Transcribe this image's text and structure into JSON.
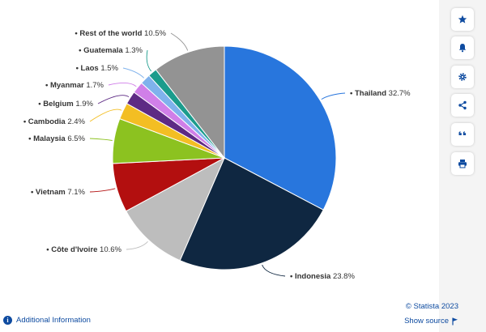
{
  "chart_data": {
    "type": "pie",
    "unit": "%",
    "start_angle_deg": 0,
    "direction": "clockwise",
    "slices": [
      {
        "label": "Thailand",
        "value": 32.7,
        "value_text": "32.7%",
        "color": "#2876dd"
      },
      {
        "label": "Indonesia",
        "value": 23.8,
        "value_text": "23.8%",
        "color": "#0f2741"
      },
      {
        "label": "Côte d'Ivoire",
        "value": 10.6,
        "value_text": "10.6%",
        "color": "#bdbdbd"
      },
      {
        "label": "Vietnam",
        "value": 7.1,
        "value_text": "7.1%",
        "color": "#b30f0f"
      },
      {
        "label": "Malaysia",
        "value": 6.5,
        "value_text": "6.5%",
        "color": "#8cc220"
      },
      {
        "label": "Cambodia",
        "value": 2.4,
        "value_text": "2.4%",
        "color": "#f3be23"
      },
      {
        "label": "Belgium",
        "value": 1.9,
        "value_text": "1.9%",
        "color": "#5d2a84"
      },
      {
        "label": "Myanmar",
        "value": 1.7,
        "value_text": "1.7%",
        "color": "#d07fe8"
      },
      {
        "label": "Laos",
        "value": 1.5,
        "value_text": "1.5%",
        "color": "#7fb2ec"
      },
      {
        "label": "Guatemala",
        "value": 1.3,
        "value_text": "1.3%",
        "color": "#1b9c8c"
      },
      {
        "label": "Rest of the world",
        "value": 10.5,
        "value_text": "10.5%",
        "color": "#939393"
      }
    ]
  },
  "footer": {
    "credit": "© Statista 2023",
    "show_source": "Show source",
    "additional_info": "Additional Information"
  },
  "sidebar": {
    "buttons": [
      {
        "icon": "star-icon"
      },
      {
        "icon": "bell-icon"
      },
      {
        "icon": "gear-icon"
      },
      {
        "icon": "share-icon"
      },
      {
        "icon": "quote-icon"
      },
      {
        "icon": "print-icon"
      }
    ]
  },
  "colors": {
    "accent": "#0e4ba0",
    "sidebar_bg": "#f4f4f4"
  }
}
